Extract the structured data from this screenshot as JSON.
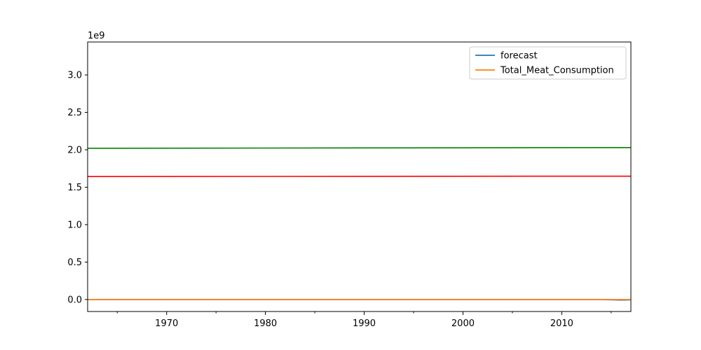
{
  "chart_data": {
    "type": "line",
    "title": "",
    "xlabel": "",
    "ylabel": "",
    "y_offset_label": "1e9",
    "xlim": [
      1962,
      2017
    ],
    "ylim": [
      -0.16,
      3.44
    ],
    "x_ticks": [
      1970,
      1980,
      1990,
      2000,
      2010
    ],
    "x_tick_labels": [
      "1970",
      "1980",
      "1990",
      "2000",
      "2010"
    ],
    "y_ticks": [
      0.0,
      0.5,
      1.0,
      1.5,
      2.0,
      2.5,
      3.0
    ],
    "y_tick_labels": [
      "0.0",
      "0.5",
      "1.0",
      "1.5",
      "2.0",
      "2.5",
      "3.0"
    ],
    "grid": false,
    "legend_position": "top-right",
    "legend": [
      "forecast",
      "Total_Meat_Consumption"
    ],
    "series": [
      {
        "name": "forecast",
        "color": "#1f77b4",
        "x": [
          1962,
          2014,
          2015,
          2016,
          2017
        ],
        "y": [
          0.0,
          0.0,
          -0.004,
          -0.008,
          -0.004
        ]
      },
      {
        "name": "Total_Meat_Consumption",
        "color": "#ff7f0e",
        "x": [
          1962,
          2017
        ],
        "y": [
          0.0,
          0.0
        ]
      },
      {
        "color": "#008000",
        "x": [
          1962,
          2017
        ],
        "y": [
          2.02,
          2.03
        ]
      },
      {
        "color": "#ff0000",
        "x": [
          1962,
          2017
        ],
        "y": [
          1.643,
          1.648
        ]
      }
    ]
  }
}
